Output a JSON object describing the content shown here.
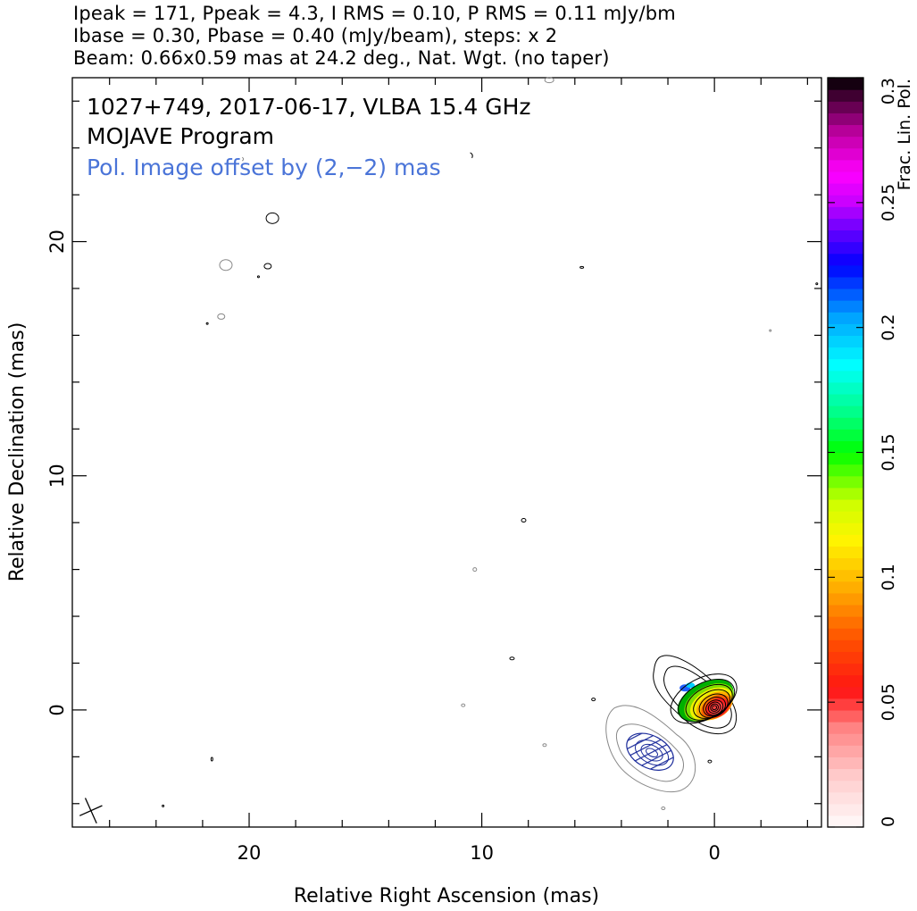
{
  "header": {
    "line1": "Ipeak = 171, Ppeak = 4.3, I RMS = 0.10, P RMS = 0.11 mJy/bm",
    "line2": "Ibase = 0.30, Pbase = 0.40 (mJy/beam), steps: x 2",
    "line3": "Beam: 0.66x0.59 mas at 24.2 deg., Nat. Wgt. (no taper)"
  },
  "chart_data": {
    "type": "contour",
    "annotations": {
      "source": "1027+749, 2017-06-17, VLBA 15.4 GHz",
      "program": "MOJAVE Program",
      "offset_note": "Pol. Image offset by (2,−2) mas"
    },
    "xlabel": "Relative Right Ascension (mas)",
    "ylabel": "Relative Declination (mas)",
    "xlim": [
      27.6,
      -4.6
    ],
    "ylim": [
      -5.0,
      27.0
    ],
    "x_ticks": [
      {
        "v": 20,
        "label": "20"
      },
      {
        "v": 10,
        "label": "10"
      },
      {
        "v": 0,
        "label": "0"
      }
    ],
    "y_ticks": [
      {
        "v": 0,
        "label": "0"
      },
      {
        "v": 10,
        "label": "10"
      },
      {
        "v": 20,
        "label": "20"
      }
    ],
    "x_minor_step": 2,
    "y_minor_step": 2,
    "colorbar": {
      "label": "Frac. Lin. Pol.",
      "range": [
        0,
        0.3
      ],
      "ticks": [
        {
          "v": 0,
          "label": "0"
        },
        {
          "v": 0.05,
          "label": "0.05"
        },
        {
          "v": 0.1,
          "label": "0.1"
        },
        {
          "v": 0.15,
          "label": "0.15"
        },
        {
          "v": 0.2,
          "label": "0.2"
        },
        {
          "v": 0.25,
          "label": "0.25"
        },
        {
          "v": 0.3,
          "label": "0.3"
        }
      ]
    },
    "colors": {
      "stokes_i_contours": "#000000",
      "pol_contours": "#1a2a9a",
      "offset_note": "#4a74d8",
      "faint_contours": "#888888"
    },
    "beam": {
      "major_mas": 0.66,
      "minor_mas": 0.59,
      "pa_deg": 24.2,
      "x": 26.8,
      "y": -4.3
    },
    "core": {
      "x": 0.0,
      "y": 0.1
    },
    "pol_offset": {
      "dx": 2,
      "dy": -2
    }
  }
}
